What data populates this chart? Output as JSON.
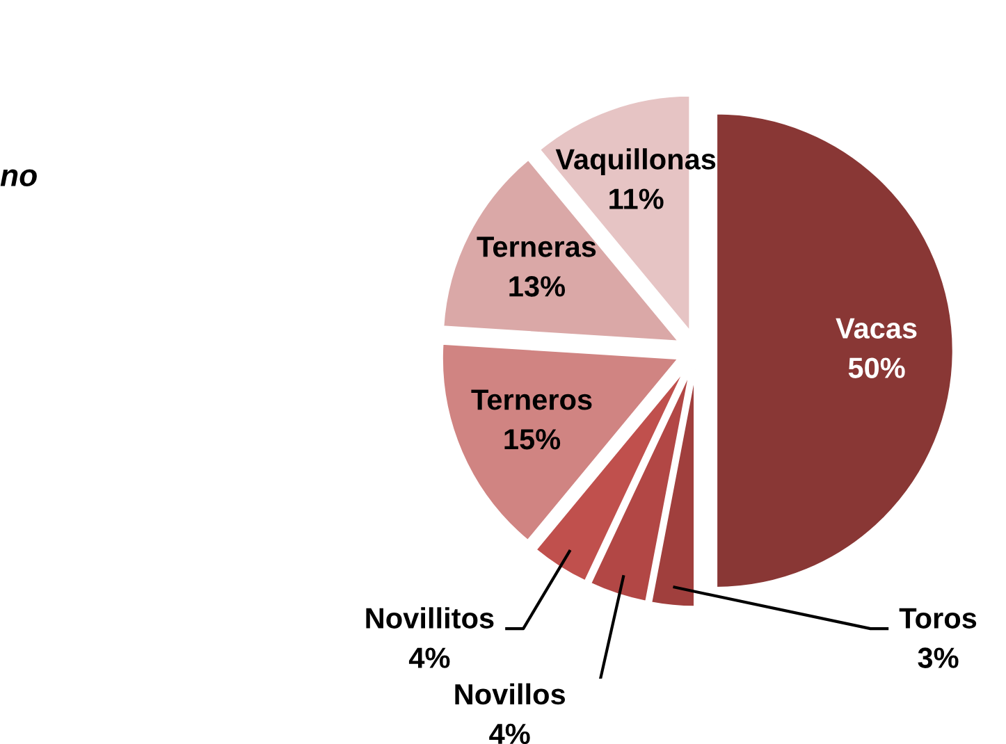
{
  "chart_data": {
    "type": "pie",
    "categories": [
      "Vacas",
      "Toros",
      "Novillos",
      "Novillitos",
      "Terneros",
      "Terneras",
      "Vaquillonas"
    ],
    "values": [
      50,
      3,
      4,
      4,
      15,
      13,
      11
    ],
    "value_labels": [
      "50%",
      "3%",
      "4%",
      "4%",
      "15%",
      "13%",
      "11%"
    ],
    "colors": [
      "#893735",
      "#a03f3d",
      "#b24745",
      "#c0504d",
      "#d08482",
      "#daa8a7",
      "#e6c4c4"
    ],
    "annotations": [
      "no"
    ],
    "legend": false
  }
}
